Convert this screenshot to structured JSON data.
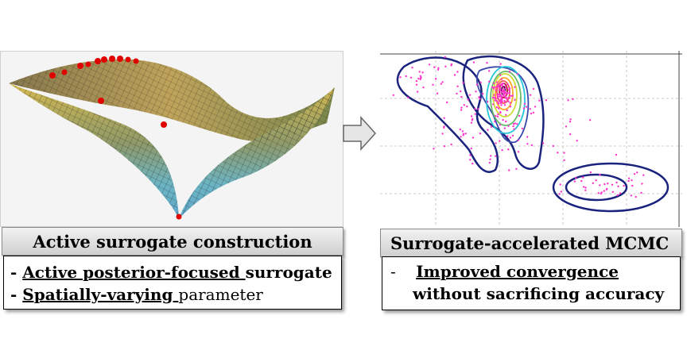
{
  "left": {
    "title": "Active surrogate construction",
    "bullet1_dash": "- ",
    "bullet1_under": "Active posterior-focused ",
    "bullet1_rest": "surrogate",
    "bullet2_dash": "- ",
    "bullet2_under": "Spatially-varying ",
    "bullet2_rest": "parameter"
  },
  "right": {
    "title": "Surrogate-accelerated MCMC",
    "bullet1_dash": "-",
    "bullet1_under": "Improved convergence",
    "bullet1_line2": "without sacrificing accuracy"
  },
  "colors": {
    "surface_top": "#c9b24a",
    "surface_bottom": "#6fb8c8",
    "points": "#e00000",
    "contour_outer": "#1a237e",
    "samples": "#ff33cc"
  },
  "icons": {
    "arrow": "right-arrow-icon"
  }
}
